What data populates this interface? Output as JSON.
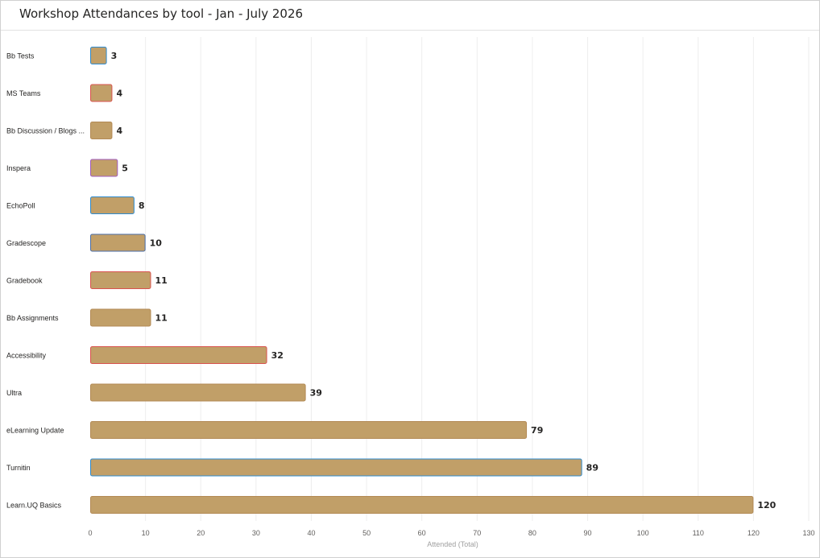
{
  "header": {
    "title": "Workshop Attendances by tool - Jan - July 2026"
  },
  "colors": {
    "bar": "#c19f68",
    "bar_outline_default": "#b38a55",
    "gridline": "#eeeeee"
  },
  "chart_data": {
    "type": "bar",
    "orientation": "horizontal",
    "title": "Workshop Attendances by tool - Jan - July 2026",
    "xlabel": "Attended (Total)",
    "ylabel": "",
    "xlim": [
      0,
      130
    ],
    "xticks": [
      0,
      10,
      20,
      30,
      40,
      50,
      60,
      70,
      80,
      90,
      100,
      110,
      120,
      130
    ],
    "grid": true,
    "categories": [
      "Bb Tests",
      "MS Teams",
      "Bb Discussion / Blogs ...",
      "Inspera",
      "EchoPoll",
      "Gradescope",
      "Gradebook",
      "Bb Assignments",
      "Accessibility",
      "Ultra",
      "eLearning Update",
      "Turnitin",
      "Learn.UQ Basics"
    ],
    "values": [
      3,
      4,
      4,
      5,
      8,
      10,
      11,
      11,
      32,
      39,
      79,
      89,
      120
    ],
    "outline_colors": [
      "#2e8bcf",
      "#d9534f",
      "#b38a55",
      "#a05bc0",
      "#2e8bcf",
      "#4a6ea8",
      "#d9534f",
      "#b38a55",
      "#d9534f",
      "#b38a55",
      "#b38a55",
      "#2e8bcf",
      "#b38a55"
    ]
  }
}
